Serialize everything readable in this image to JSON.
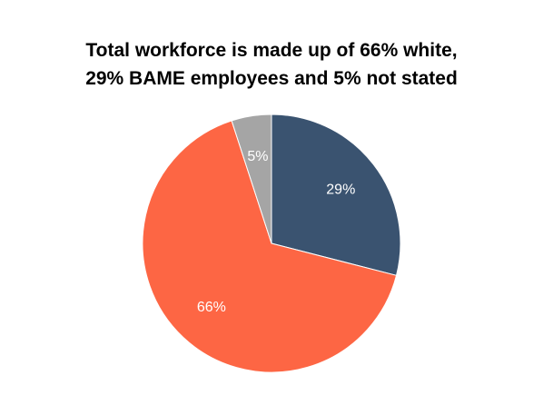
{
  "chart_data": {
    "type": "pie",
    "title": [
      "Total workforce is made up of 66% white,",
      "29% BAME employees and 5% not stated"
    ],
    "start_angle_deg": 0,
    "direction": "clockwise",
    "slices": [
      {
        "value": 29,
        "label": "29%",
        "color": "#3a5370"
      },
      {
        "value": 66,
        "label": "66%",
        "color": "#fd6644"
      },
      {
        "value": 5,
        "label": "5%",
        "color": "#a5a5a5"
      }
    ],
    "legend": "none"
  }
}
